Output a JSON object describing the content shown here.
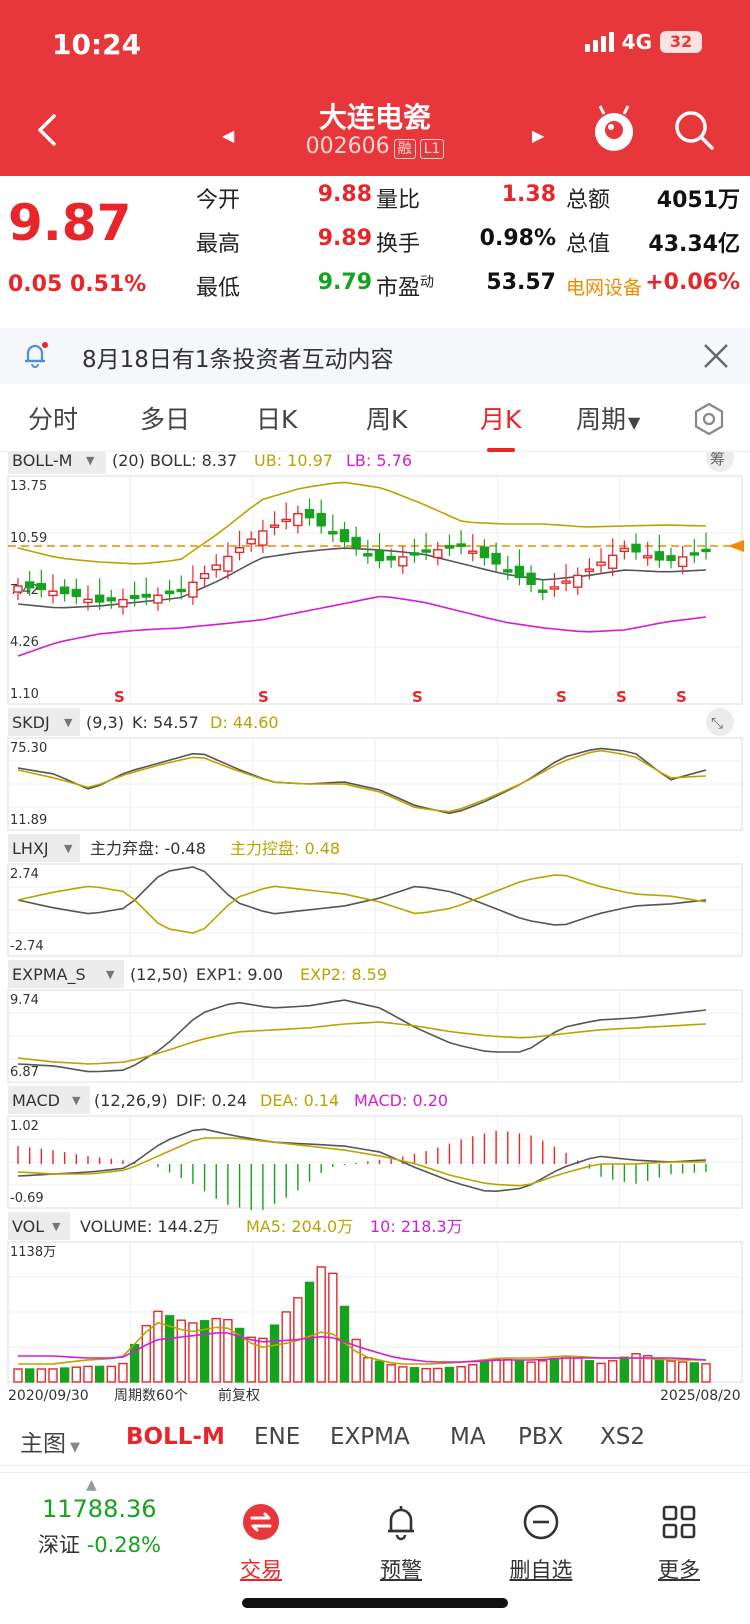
{
  "status": {
    "time": "10:24",
    "network": "4G",
    "battery": "32"
  },
  "header": {
    "name": "大连电瓷",
    "code": "002606",
    "tag_margin": "融",
    "tag_level": "L1"
  },
  "quote": {
    "price": "9.87",
    "change": "0.05",
    "change_pct": "0.51%",
    "rows": [
      [
        {
          "k": "今开",
          "v": "9.88",
          "c": "red"
        },
        {
          "k": "量比",
          "v": "1.38",
          "c": "red"
        },
        {
          "k": "总额",
          "v": "4051万",
          "c": "black"
        }
      ],
      [
        {
          "k": "最高",
          "v": "9.89",
          "c": "red"
        },
        {
          "k": "换手",
          "v": "0.98%",
          "c": "black"
        },
        {
          "k": "总值",
          "v": "43.34亿",
          "c": "black"
        }
      ],
      [
        {
          "k": "最低",
          "v": "9.79",
          "c": "green"
        },
        {
          "k": "市盈",
          "sup": "动",
          "v": "53.57",
          "c": "black"
        },
        {
          "k": "电网设备",
          "v": "+0.06%",
          "c": "orange"
        }
      ]
    ]
  },
  "notice": {
    "text": "8月18日有1条投资者互动内容"
  },
  "tabs": [
    "分时",
    "多日",
    "日K",
    "周K",
    "月K",
    "周期"
  ],
  "active_tab": "月K",
  "panels": {
    "boll": {
      "name": "BOLL-M",
      "params": "(20)",
      "boll": "BOLL: 8.37",
      "ub": "UB: 10.97",
      "lb": "LB: 5.76",
      "y_ticks": [
        "13.75",
        "10.59",
        "7.42",
        "4.26",
        "1.10"
      ],
      "s_marks": [
        "S",
        "S",
        "S",
        "S",
        "S",
        "S"
      ],
      "chip": "筹"
    },
    "skdj": {
      "name": "SKDJ",
      "params": "(9,3)",
      "k": "K: 54.57",
      "d": "D: 44.60",
      "y_ticks": [
        "75.30",
        "11.89"
      ]
    },
    "lhxj": {
      "name": "LHXJ",
      "a": "主力弃盘: -0.48",
      "b": "主力控盘: 0.48",
      "y_ticks": [
        "2.74",
        "-2.74"
      ]
    },
    "expma": {
      "name": "EXPMA_S",
      "params": "(12,50)",
      "e1": "EXP1: 9.00",
      "e2": "EXP2: 8.59",
      "y_ticks": [
        "9.74",
        "6.87"
      ]
    },
    "macd": {
      "name": "MACD",
      "params": "(12,26,9)",
      "dif": "DIF: 0.24",
      "dea": "DEA: 0.14",
      "macd": "MACD: 0.20",
      "y_ticks": [
        "1.02",
        "-0.69"
      ]
    },
    "vol": {
      "name": "VOL",
      "volume": "VOLUME: 144.2万",
      "ma5": "MA5: 204.0万",
      "ma10": "10: 218.3万",
      "y_ticks": [
        "1138万"
      ]
    }
  },
  "footer_axis": {
    "start": "2020/09/30",
    "count": "周期数60个",
    "adj": "前复权",
    "end": "2025/08/20"
  },
  "indicators": [
    "主图",
    "BOLL-M",
    "ENE",
    "EXPMA",
    "MA",
    "PBX",
    "XS2"
  ],
  "active_indicator": "BOLL-M",
  "bottom_nav": {
    "index_value": "11788.36",
    "index_name": "深证",
    "index_change": "-0.28%",
    "items": [
      "交易",
      "预警",
      "删自选",
      "更多"
    ]
  },
  "colors": {
    "brand": "#e8373a",
    "up": "#e8262a",
    "down": "#16a21f",
    "gold": "#b8a400",
    "magenta": "#d21ed2"
  }
}
